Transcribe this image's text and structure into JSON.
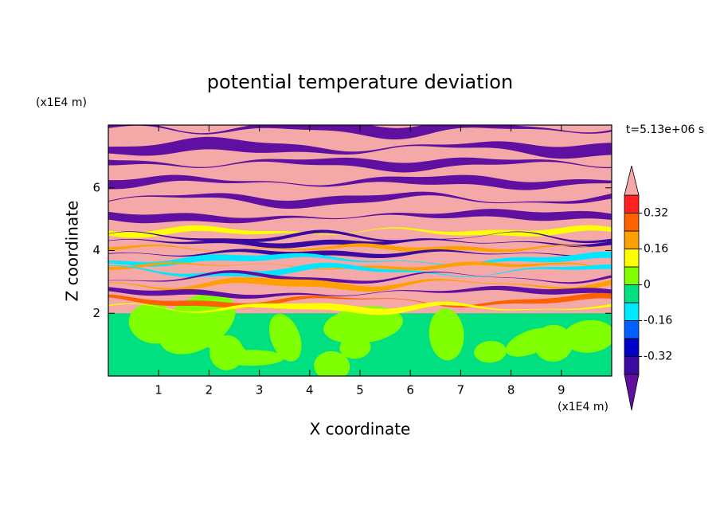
{
  "chart_data": {
    "type": "contour",
    "title": "potential temperature deviation",
    "x_label": "X coordinate",
    "y_label": "Z coordinate",
    "x_unit": "(x1E4 m)",
    "y_unit": "(x1E4 m)",
    "time_label": "t=5.13e+06 s",
    "xlim": [
      0,
      10
    ],
    "ylim": [
      0,
      8
    ],
    "xticks": [
      1,
      2,
      3,
      4,
      5,
      6,
      7,
      8,
      9
    ],
    "yticks": [
      2,
      4,
      6
    ],
    "levels": [
      -0.4,
      -0.32,
      -0.24,
      -0.16,
      -0.08,
      0,
      0.08,
      0.16,
      0.24,
      0.32,
      0.4
    ],
    "level_colors": [
      "#3a0aa0",
      "#0000c8",
      "#0060ff",
      "#00e8ff",
      "#00e080",
      "#80ff00",
      "#ffff00",
      "#ffa000",
      "#ff6000",
      "#ff2020"
    ],
    "under_color": "#6010a0",
    "over_color": "#f4a8a8",
    "colorbar_ticks": [
      0.32,
      0.16,
      0,
      -0.16,
      -0.32
    ]
  }
}
